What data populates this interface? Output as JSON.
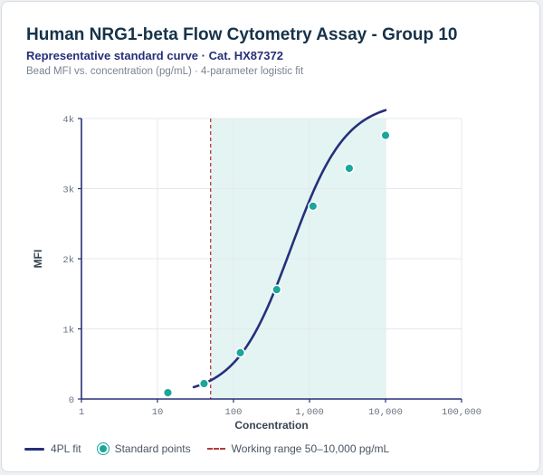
{
  "header": {
    "title": "Human NRG1-beta Flow Cytometry Assay - Group 10",
    "subtitle": "Representative standard curve · Cat. HX87372",
    "note": "Bead MFI vs. concentration (pg/mL) · 4-parameter logistic fit"
  },
  "legend": {
    "fit": "4PL fit",
    "points": "Standard points",
    "range": "Working range 50–10,000 pg/mL"
  },
  "colors": {
    "curve": "#26307a",
    "points": "#1aa69b",
    "range_fill": "#e4f4f3",
    "cutoff": "#b53a3a",
    "axis": "#26307a",
    "grid": "#e6e8ec"
  },
  "chart_data": {
    "type": "scatter",
    "xlabel": "Concentration",
    "ylabel": "MFI",
    "x_scale": "log",
    "xlim": [
      1,
      100000
    ],
    "ylim": [
      0,
      4000
    ],
    "x_ticks": [
      1,
      10,
      100,
      1000,
      10000,
      100000
    ],
    "x_tick_labels": [
      "1",
      "10",
      "100",
      "1,000",
      "10,000",
      "100,000"
    ],
    "y_ticks": [
      0,
      1000,
      2000,
      3000,
      4000
    ],
    "y_tick_labels": [
      "0",
      "1k",
      "2k",
      "3k",
      "4k"
    ],
    "grid": true,
    "working_range": [
      50,
      10000
    ],
    "cutoff_line": 50,
    "fit_range": [
      30,
      10000
    ],
    "fit_params": {
      "bottom": 50,
      "top": 4250,
      "ec50": 570,
      "hill": 1.2
    },
    "series": [
      {
        "name": "4PL fit",
        "kind": "line"
      },
      {
        "name": "Standard points",
        "kind": "scatter",
        "x": [
          13.7,
          41,
          123,
          370,
          1111,
          3333,
          10000
        ],
        "y": [
          90,
          220,
          660,
          1560,
          2750,
          3290,
          3760
        ]
      }
    ],
    "legend_position": "bottom-left"
  }
}
